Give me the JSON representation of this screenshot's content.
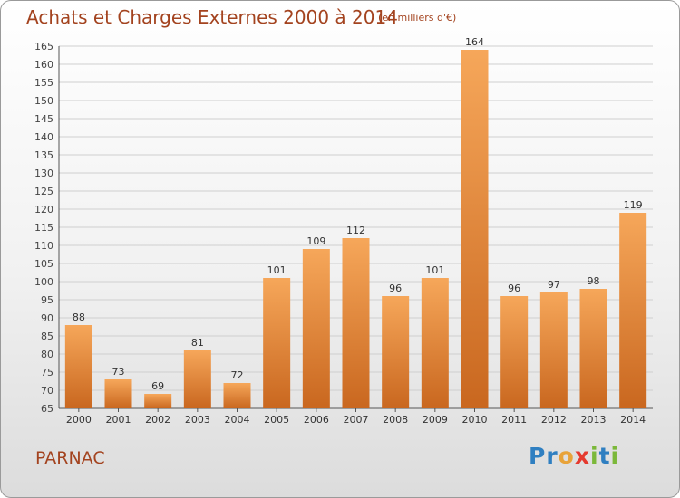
{
  "title": "Achats et Charges Externes 2000 à 2014",
  "subtitle": "(en milliers d'€)",
  "commune": "PARNAC",
  "logo": {
    "text": "Proxiti",
    "letters": [
      "P",
      "r",
      "o",
      "x",
      "i",
      "t",
      "i"
    ],
    "colors": [
      "#2f7fc1",
      "#2f7fc1",
      "#e8a33a",
      "#e53a2f",
      "#7bb83a",
      "#2f7fc1",
      "#7bb83a"
    ]
  },
  "colors": {
    "bar_light": "#f6a75a",
    "bar_dark": "#c9671f",
    "accent": "#a3431f"
  },
  "chart_data": {
    "type": "bar",
    "categories": [
      "2000",
      "2001",
      "2002",
      "2003",
      "2004",
      "2005",
      "2006",
      "2007",
      "2008",
      "2009",
      "2010",
      "2011",
      "2012",
      "2013",
      "2014"
    ],
    "values": [
      88,
      73,
      69,
      81,
      72,
      101,
      109,
      112,
      96,
      101,
      164,
      96,
      97,
      98,
      119
    ],
    "ylim": [
      65,
      165
    ],
    "yticks": [
      65,
      70,
      75,
      80,
      85,
      90,
      95,
      100,
      105,
      110,
      115,
      120,
      125,
      130,
      135,
      140,
      145,
      150,
      155,
      160,
      165
    ],
    "grid": true,
    "xlabel": "",
    "ylabel": ""
  }
}
